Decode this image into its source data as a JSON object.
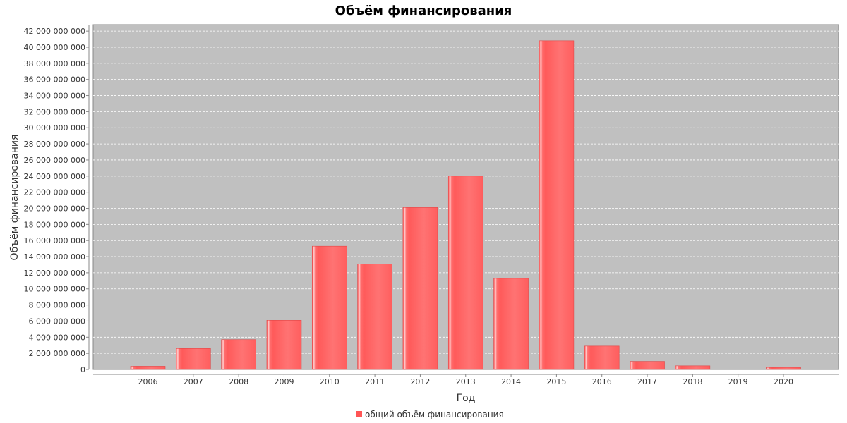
{
  "chart_data": {
    "type": "bar",
    "title": "Объём финансирования",
    "xlabel": "Год",
    "ylabel": "Объём финансирования",
    "categories": [
      "2006",
      "2007",
      "2008",
      "2009",
      "2010",
      "2011",
      "2012",
      "2013",
      "2014",
      "2015",
      "2016",
      "2017",
      "2018",
      "2019",
      "2020"
    ],
    "series": [
      {
        "name": "общий объём финансирования",
        "values": [
          400000000,
          2600000000,
          3700000000,
          6100000000,
          15300000000,
          13100000000,
          20100000000,
          24000000000,
          11300000000,
          40800000000,
          2900000000,
          1000000000,
          450000000,
          0,
          250000000
        ]
      }
    ],
    "ylim": [
      0,
      42800000000
    ],
    "yticks": [
      0,
      2000000000,
      4000000000,
      6000000000,
      8000000000,
      10000000000,
      12000000000,
      14000000000,
      16000000000,
      18000000000,
      20000000000,
      22000000000,
      24000000000,
      26000000000,
      28000000000,
      30000000000,
      32000000000,
      34000000000,
      36000000000,
      38000000000,
      40000000000,
      42000000000
    ],
    "ytick_labels": [
      "0",
      "2 000 000 000",
      "4 000 000 000",
      "6 000 000 000",
      "8 000 000 000",
      "10 000 000 000",
      "12 000 000 000",
      "14 000 000 000",
      "16 000 000 000",
      "18 000 000 000",
      "20 000 000 000",
      "22 000 000 000",
      "24 000 000 000",
      "26 000 000 000",
      "28 000 000 000",
      "30 000 000 000",
      "32 000 000 000",
      "34 000 000 000",
      "36 000 000 000",
      "38 000 000 000",
      "40 000 000 000",
      "42 000 000 000"
    ],
    "grid": true,
    "legend_position": "bottom-center",
    "colors": {
      "bar": "#ff5555",
      "bar_highlight": "#ffffff",
      "plot_background": "#c0c0c0",
      "grid": "#ffffff"
    }
  }
}
